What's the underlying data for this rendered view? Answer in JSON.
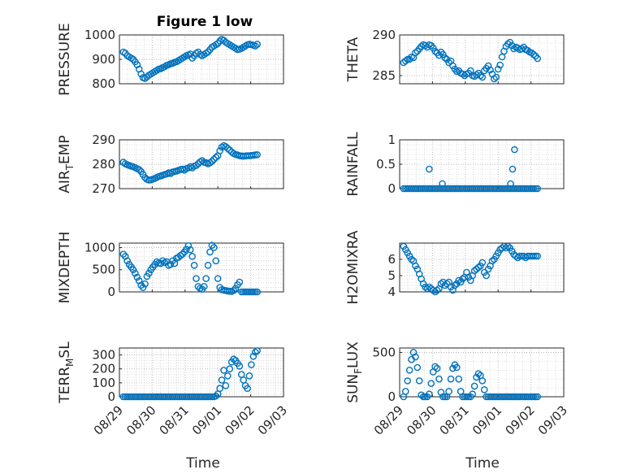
{
  "figure_title": "Figure 1 low",
  "x_axis_label": "Time",
  "x_ticks": [
    "08/29",
    "08/30",
    "08/31",
    "09/01",
    "09/02",
    "09/03"
  ],
  "marker_color": "#0072BD",
  "grid_color": "#b0b0b0",
  "chart_data": [
    {
      "type": "scatter",
      "ylabel": "PRESSURE",
      "ylim": [
        800,
        1000
      ],
      "yticks": [
        "800",
        "900",
        "1000"
      ],
      "x": [
        0.12,
        0.18,
        0.24,
        0.3,
        0.36,
        0.42,
        0.48,
        0.54,
        0.6,
        0.66,
        0.72,
        0.78,
        0.84,
        0.9,
        0.96,
        1.02,
        1.08,
        1.14,
        1.2,
        1.26,
        1.32,
        1.38,
        1.44,
        1.5,
        1.56,
        1.62,
        1.68,
        1.74,
        1.8,
        1.86,
        1.92,
        1.98,
        2.04,
        2.1,
        2.16,
        2.22,
        2.28,
        2.34,
        2.4,
        2.46,
        2.52,
        2.58,
        2.64,
        2.7,
        2.76,
        2.82,
        2.88,
        2.94,
        3.0,
        3.06,
        3.12,
        3.18,
        3.24,
        3.3,
        3.36,
        3.42,
        3.48,
        3.54,
        3.6,
        3.66,
        3.72,
        3.78,
        3.84,
        3.9,
        3.96,
        4.02,
        4.08,
        4.14,
        4.2
      ],
      "y": [
        930,
        925,
        915,
        910,
        905,
        900,
        890,
        878,
        860,
        840,
        825,
        822,
        828,
        835,
        840,
        845,
        850,
        855,
        860,
        862,
        866,
        870,
        875,
        878,
        882,
        884,
        888,
        890,
        895,
        900,
        905,
        910,
        915,
        918,
        922,
        905,
        915,
        925,
        930,
        920,
        915,
        920,
        925,
        930,
        940,
        950,
        955,
        960,
        965,
        975,
        982,
        978,
        970,
        965,
        960,
        955,
        950,
        945,
        940,
        942,
        945,
        950,
        955,
        960,
        962,
        960,
        958,
        955,
        962
      ]
    },
    {
      "type": "scatter",
      "ylabel": "THETA",
      "ylim": [
        284,
        290
      ],
      "yticks": [
        "285",
        "290"
      ],
      "x": [
        0.12,
        0.18,
        0.24,
        0.3,
        0.36,
        0.42,
        0.48,
        0.54,
        0.6,
        0.66,
        0.72,
        0.78,
        0.84,
        0.9,
        0.96,
        1.02,
        1.08,
        1.14,
        1.2,
        1.26,
        1.32,
        1.38,
        1.44,
        1.5,
        1.56,
        1.62,
        1.68,
        1.74,
        1.8,
        1.86,
        1.92,
        1.98,
        2.04,
        2.1,
        2.16,
        2.22,
        2.28,
        2.34,
        2.4,
        2.46,
        2.52,
        2.58,
        2.64,
        2.7,
        2.76,
        2.82,
        2.88,
        2.94,
        3.0,
        3.06,
        3.12,
        3.18,
        3.24,
        3.3,
        3.36,
        3.42,
        3.48,
        3.54,
        3.6,
        3.66,
        3.72,
        3.78,
        3.84,
        3.9,
        3.96,
        4.02,
        4.08,
        4.14,
        4.2
      ],
      "y": [
        286.6,
        286.8,
        287.0,
        287.0,
        287.3,
        287.2,
        287.8,
        288.0,
        288.3,
        288.6,
        288.8,
        288.7,
        288.5,
        288.8,
        288.7,
        288.4,
        288.0,
        287.8,
        287.5,
        287.9,
        287.6,
        287.2,
        287.0,
        286.6,
        286.8,
        286.2,
        285.8,
        285.5,
        285.6,
        285.3,
        285.2,
        285.0,
        285.2,
        285.3,
        285.6,
        285.0,
        284.9,
        285.1,
        285.3,
        285.0,
        284.8,
        285.6,
        285.9,
        286.2,
        285.7,
        285.2,
        284.6,
        284.8,
        285.8,
        286.3,
        287.3,
        288.0,
        288.6,
        288.9,
        289.1,
        288.7,
        288.3,
        288.5,
        288.4,
        288.2,
        288.3,
        288.5,
        288.2,
        288.1,
        287.9,
        287.8,
        287.6,
        287.4,
        287.1
      ]
    },
    {
      "type": "scatter",
      "ylabel": "AIR_TEMP",
      "ylim": [
        270,
        290
      ],
      "yticks": [
        "270",
        "280",
        "290"
      ],
      "x": [
        0.12,
        0.18,
        0.24,
        0.3,
        0.36,
        0.42,
        0.48,
        0.54,
        0.6,
        0.66,
        0.72,
        0.78,
        0.84,
        0.9,
        0.96,
        1.02,
        1.08,
        1.14,
        1.2,
        1.26,
        1.32,
        1.38,
        1.44,
        1.5,
        1.56,
        1.62,
        1.68,
        1.74,
        1.8,
        1.86,
        1.92,
        1.98,
        2.04,
        2.1,
        2.16,
        2.22,
        2.28,
        2.34,
        2.4,
        2.46,
        2.52,
        2.58,
        2.64,
        2.7,
        2.76,
        2.82,
        2.88,
        2.94,
        3.0,
        3.06,
        3.12,
        3.18,
        3.24,
        3.3,
        3.36,
        3.42,
        3.48,
        3.54,
        3.6,
        3.66,
        3.72,
        3.78,
        3.84,
        3.9,
        3.96,
        4.02,
        4.08,
        4.14,
        4.2
      ],
      "y": [
        280.8,
        280.2,
        279.8,
        279.5,
        279.2,
        279.0,
        278.6,
        278.2,
        277.8,
        277.0,
        275.8,
        274.5,
        273.8,
        273.5,
        273.6,
        273.9,
        274.2,
        274.6,
        275.0,
        275.2,
        275.5,
        275.8,
        276.0,
        276.5,
        276.2,
        276.8,
        277.0,
        277.2,
        277.5,
        277.8,
        278.0,
        277.6,
        278.2,
        278.5,
        279.0,
        278.5,
        279.2,
        279.5,
        280.2,
        281.0,
        281.5,
        280.8,
        280.6,
        280.2,
        280.6,
        281.2,
        282.0,
        282.8,
        283.5,
        285.5,
        287.0,
        287.6,
        287.2,
        286.5,
        285.8,
        285.0,
        284.4,
        284.0,
        283.8,
        283.5,
        283.4,
        283.3,
        283.4,
        283.5,
        283.5,
        283.6,
        283.7,
        283.8,
        283.9
      ]
    },
    {
      "type": "scatter",
      "ylabel": "RAINFALL",
      "ylim": [
        0,
        1
      ],
      "yticks": [
        "0",
        "0.5",
        "1"
      ],
      "x": [
        0.12,
        0.18,
        0.24,
        0.3,
        0.36,
        0.42,
        0.48,
        0.54,
        0.6,
        0.66,
        0.72,
        0.78,
        0.84,
        0.9,
        0.96,
        1.02,
        1.08,
        1.14,
        1.2,
        1.26,
        1.32,
        1.38,
        1.44,
        1.5,
        1.56,
        1.62,
        1.68,
        1.74,
        1.8,
        1.86,
        1.92,
        1.98,
        2.04,
        2.1,
        2.16,
        2.22,
        2.28,
        2.34,
        2.4,
        2.46,
        2.52,
        2.58,
        2.64,
        2.7,
        2.76,
        2.82,
        2.88,
        2.94,
        3.0,
        3.06,
        3.12,
        3.18,
        3.24,
        3.3,
        3.36,
        3.42,
        3.48,
        3.54,
        3.6,
        3.66,
        3.72,
        3.78,
        3.84,
        3.9,
        3.96,
        4.02,
        4.08,
        4.14,
        4.2,
        0.9,
        1.3,
        3.38,
        3.44,
        3.5
      ],
      "y": [
        0,
        0,
        0,
        0,
        0,
        0,
        0,
        0,
        0,
        0,
        0,
        0,
        0,
        0,
        0,
        0,
        0,
        0,
        0,
        0,
        0,
        0,
        0,
        0,
        0,
        0,
        0,
        0,
        0,
        0,
        0,
        0,
        0,
        0,
        0,
        0,
        0,
        0,
        0,
        0,
        0,
        0,
        0,
        0,
        0,
        0,
        0,
        0,
        0,
        0,
        0,
        0,
        0,
        0,
        0,
        0,
        0,
        0,
        0,
        0,
        0,
        0,
        0,
        0,
        0,
        0,
        0,
        0,
        0,
        0.4,
        0.1,
        0.1,
        0.4,
        0.8
      ]
    },
    {
      "type": "scatter",
      "ylabel": "MIXDEPTH",
      "ylim": [
        0,
        1100
      ],
      "yticks": [
        "0",
        "500",
        "1000"
      ],
      "x": [
        0.12,
        0.18,
        0.24,
        0.3,
        0.36,
        0.42,
        0.48,
        0.54,
        0.6,
        0.66,
        0.72,
        0.78,
        0.84,
        0.9,
        0.96,
        1.02,
        1.08,
        1.14,
        1.2,
        1.26,
        1.32,
        1.38,
        1.44,
        1.5,
        1.56,
        1.62,
        1.68,
        1.74,
        1.8,
        1.86,
        1.92,
        1.98,
        2.04,
        2.1,
        2.16,
        2.22,
        2.28,
        2.34,
        2.4,
        2.46,
        2.52,
        2.58,
        2.64,
        2.7,
        2.76,
        2.82,
        2.88,
        2.94,
        3.0,
        3.06,
        3.12,
        3.18,
        3.24,
        3.3,
        3.36,
        3.42,
        3.48,
        3.54,
        3.6,
        3.66,
        3.72,
        3.78,
        3.84,
        3.9,
        3.96,
        4.02,
        4.08,
        4.14,
        4.2
      ],
      "y": [
        850,
        800,
        700,
        620,
        560,
        500,
        420,
        330,
        250,
        150,
        100,
        180,
        350,
        420,
        500,
        560,
        620,
        680,
        650,
        640,
        700,
        660,
        680,
        600,
        620,
        700,
        640,
        760,
        780,
        820,
        850,
        900,
        960,
        1040,
        950,
        800,
        600,
        300,
        120,
        80,
        60,
        120,
        300,
        600,
        900,
        1050,
        1000,
        700,
        300,
        100,
        50,
        40,
        30,
        20,
        15,
        10,
        30,
        80,
        160,
        220,
        0,
        0,
        0,
        0,
        0,
        0,
        0,
        0,
        0
      ]
    },
    {
      "type": "scatter",
      "ylabel": "H2OMIXRA",
      "ylim": [
        4,
        7
      ],
      "yticks": [
        "4",
        "5",
        "6"
      ],
      "x": [
        0.12,
        0.18,
        0.24,
        0.3,
        0.36,
        0.42,
        0.48,
        0.54,
        0.6,
        0.66,
        0.72,
        0.78,
        0.84,
        0.9,
        0.96,
        1.02,
        1.08,
        1.14,
        1.2,
        1.26,
        1.32,
        1.38,
        1.44,
        1.5,
        1.56,
        1.62,
        1.68,
        1.74,
        1.8,
        1.86,
        1.92,
        1.98,
        2.04,
        2.1,
        2.16,
        2.22,
        2.28,
        2.34,
        2.4,
        2.46,
        2.52,
        2.58,
        2.64,
        2.7,
        2.76,
        2.82,
        2.88,
        2.94,
        3.0,
        3.06,
        3.12,
        3.18,
        3.24,
        3.3,
        3.36,
        3.42,
        3.48,
        3.54,
        3.6,
        3.66,
        3.72,
        3.78,
        3.84,
        3.9,
        3.96,
        4.02,
        4.08,
        4.14,
        4.2
      ],
      "y": [
        6.8,
        6.6,
        6.4,
        6.2,
        6.0,
        5.9,
        5.6,
        5.4,
        5.1,
        4.8,
        4.5,
        4.3,
        4.2,
        4.3,
        4.2,
        4.1,
        4.0,
        4.1,
        4.2,
        4.5,
        4.6,
        4.4,
        4.5,
        4.6,
        4.3,
        4.1,
        4.4,
        4.5,
        4.7,
        4.6,
        4.8,
        4.9,
        5.2,
        4.9,
        4.7,
        5.0,
        5.3,
        5.4,
        5.5,
        5.6,
        5.8,
        5.2,
        5.0,
        5.4,
        5.6,
        5.9,
        6.0,
        6.2,
        6.4,
        6.6,
        6.7,
        6.8,
        6.7,
        6.8,
        6.7,
        6.5,
        6.3,
        6.2,
        6.1,
        6.2,
        6.2,
        6.2,
        6.1,
        6.2,
        6.2,
        6.2,
        6.2,
        6.2,
        6.2
      ]
    },
    {
      "type": "scatter",
      "ylabel": "TERR_MSL",
      "ylim": [
        0,
        350
      ],
      "yticks": [
        "0",
        "100",
        "200",
        "300"
      ],
      "x": [
        0.12,
        0.18,
        0.24,
        0.3,
        0.36,
        0.42,
        0.48,
        0.54,
        0.6,
        0.66,
        0.72,
        0.78,
        0.84,
        0.9,
        0.96,
        1.02,
        1.08,
        1.14,
        1.2,
        1.26,
        1.32,
        1.38,
        1.44,
        1.5,
        1.56,
        1.62,
        1.68,
        1.74,
        1.8,
        1.86,
        1.92,
        1.98,
        2.04,
        2.1,
        2.16,
        2.22,
        2.28,
        2.34,
        2.4,
        2.46,
        2.52,
        2.58,
        2.64,
        2.7,
        2.76,
        2.82,
        2.88,
        2.94,
        3.0,
        3.06,
        3.12,
        3.18,
        3.24,
        3.3,
        3.36,
        3.42,
        3.48,
        3.54,
        3.6,
        3.66,
        3.72,
        3.78,
        3.84,
        3.9,
        3.96,
        4.02,
        4.08,
        4.14,
        4.2
      ],
      "y": [
        0,
        0,
        0,
        0,
        0,
        0,
        0,
        0,
        0,
        0,
        0,
        0,
        0,
        0,
        0,
        0,
        0,
        0,
        0,
        0,
        0,
        0,
        0,
        0,
        0,
        0,
        0,
        0,
        0,
        0,
        0,
        0,
        0,
        0,
        0,
        0,
        0,
        0,
        0,
        0,
        0,
        0,
        0,
        0,
        0,
        0,
        0,
        5,
        20,
        60,
        120,
        190,
        80,
        150,
        200,
        250,
        270,
        260,
        240,
        220,
        160,
        120,
        80,
        60,
        150,
        230,
        290,
        320,
        330
      ]
    },
    {
      "type": "scatter",
      "ylabel": "SUN_FLUX",
      "ylim": [
        0,
        550
      ],
      "yticks": [
        "0",
        "500"
      ],
      "x": [
        0.12,
        0.18,
        0.24,
        0.3,
        0.36,
        0.42,
        0.48,
        0.54,
        0.6,
        0.66,
        0.72,
        0.78,
        0.84,
        0.9,
        0.96,
        1.02,
        1.08,
        1.14,
        1.2,
        1.26,
        1.32,
        1.38,
        1.44,
        1.5,
        1.56,
        1.62,
        1.68,
        1.74,
        1.8,
        1.86,
        1.92,
        1.98,
        2.04,
        2.1,
        2.16,
        2.22,
        2.28,
        2.34,
        2.4,
        2.46,
        2.52,
        2.58,
        2.64,
        2.7,
        2.76,
        2.82,
        2.88,
        2.94,
        3.0,
        3.06,
        3.12,
        3.18,
        3.24,
        3.3,
        3.36,
        3.42,
        3.48,
        3.54,
        3.6,
        3.66,
        3.72,
        3.78,
        3.84,
        3.9,
        3.96,
        4.02,
        4.08,
        4.14,
        4.2
      ],
      "y": [
        0,
        60,
        180,
        300,
        420,
        500,
        450,
        330,
        180,
        20,
        0,
        0,
        0,
        30,
        150,
        280,
        340,
        320,
        200,
        50,
        0,
        0,
        0,
        60,
        200,
        320,
        360,
        330,
        200,
        60,
        0,
        0,
        0,
        0,
        0,
        30,
        120,
        220,
        260,
        240,
        180,
        80,
        0,
        0,
        0,
        0,
        0,
        0,
        0,
        0,
        0,
        0,
        0,
        0,
        0,
        0,
        0,
        0,
        0,
        0,
        0,
        0,
        0,
        0,
        0,
        0,
        0,
        0,
        0
      ]
    }
  ]
}
